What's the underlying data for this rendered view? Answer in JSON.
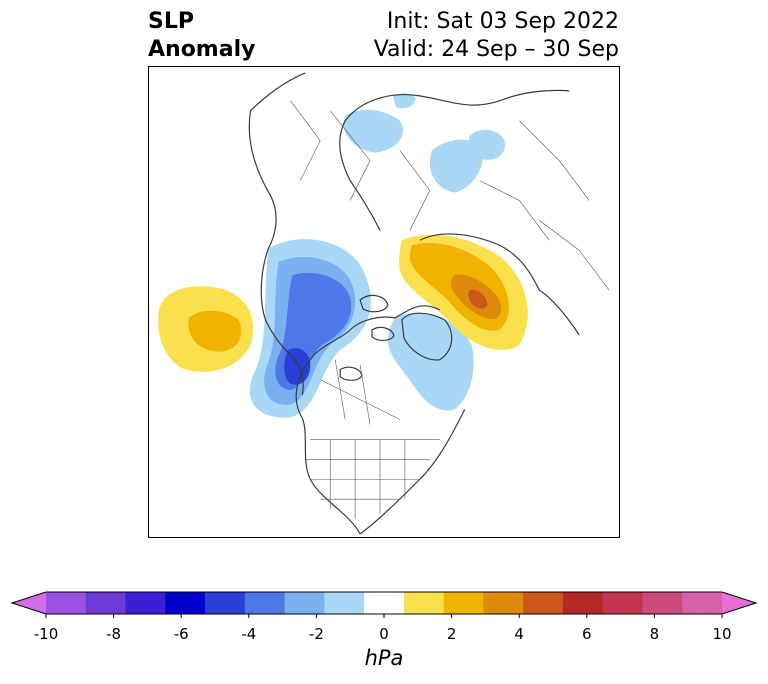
{
  "title": {
    "left_line1": "SLP",
    "left_line2": "Anomaly",
    "init": "Init: Sat 03 Sep 2022",
    "valid": "Valid: 24 Sep – 30 Sep"
  },
  "colorbar": {
    "units": "hPa",
    "ticks": [
      "-10",
      "-8",
      "-6",
      "-4",
      "-2",
      "0",
      "2",
      "4",
      "6",
      "8",
      "10"
    ],
    "colors": [
      "#cf6ee8",
      "#9b52e2",
      "#6e3bd9",
      "#3a1fd6",
      "#0000cc",
      "#2a3ed8",
      "#4e78e8",
      "#78b0f0",
      "#a9d7f6",
      "#ffffff",
      "#fbe04e",
      "#f0b400",
      "#de8a0c",
      "#c9581a",
      "#b42828",
      "#c23450",
      "#cd4a7a",
      "#d862a8",
      "#e670d8"
    ]
  },
  "map": {
    "projection": "north-polar-stereographic",
    "anomaly_fill_colors": {
      "neg_weak": "#a9d7f6",
      "neg_mod": "#78b0f0",
      "neg_strong": "#4e78e8",
      "neg_vstrong": "#2a3ed8",
      "pos_weak": "#fbe04e",
      "pos_mod": "#f0b400",
      "pos_strong": "#de8a0c",
      "pos_vstrong": "#c9581a"
    }
  }
}
